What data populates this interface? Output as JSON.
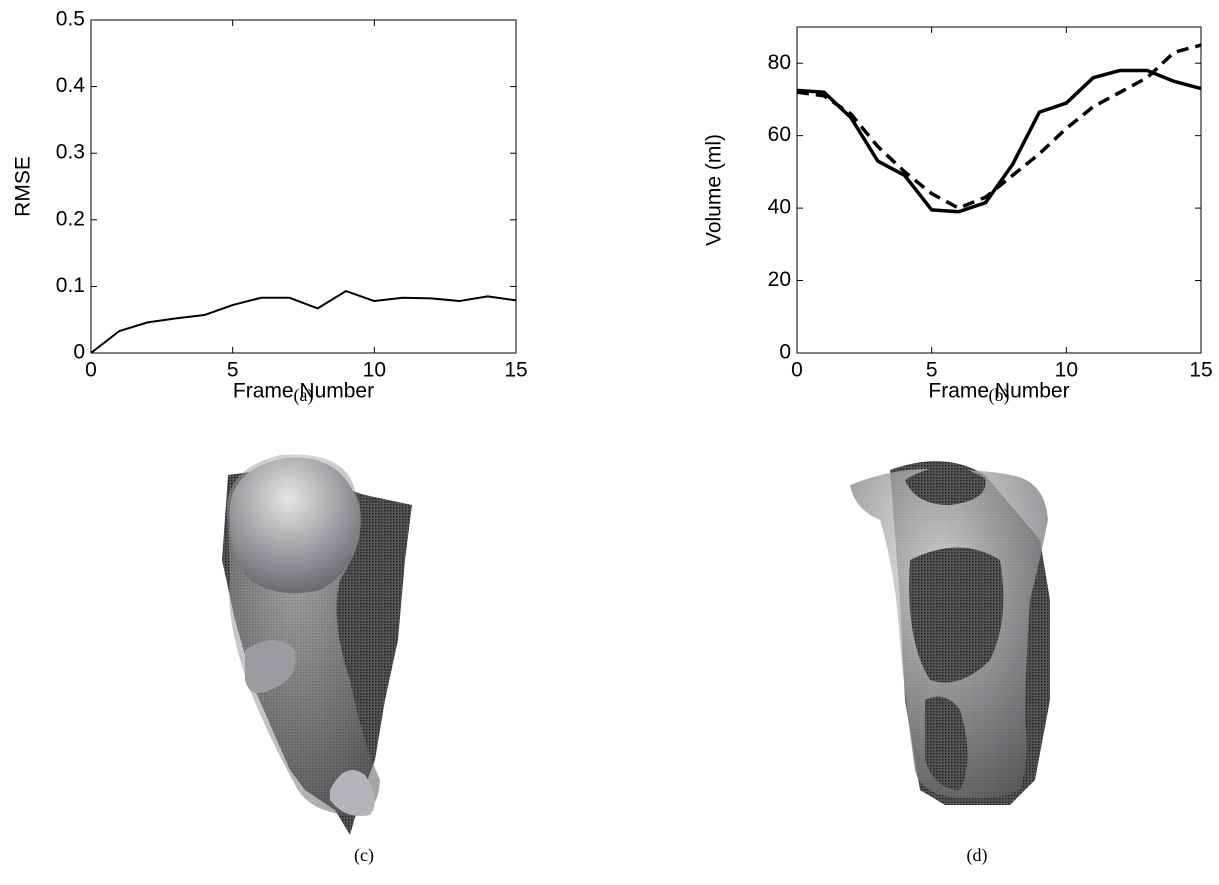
{
  "chart_data": [
    {
      "type": "line",
      "caption": "(a)",
      "xlabel": "Frame Number",
      "ylabel": "RMSE",
      "x": [
        0,
        1,
        2,
        3,
        4,
        5,
        6,
        7,
        8,
        9,
        10,
        11,
        12,
        13,
        14,
        15
      ],
      "series": [
        {
          "color": "#000000",
          "line_style": "solid",
          "values": [
            0.0,
            0.033,
            0.046,
            0.052,
            0.057,
            0.072,
            0.083,
            0.083,
            0.067,
            0.093,
            0.078,
            0.083,
            0.082,
            0.078,
            0.085,
            0.079
          ]
        }
      ],
      "xlim": [
        0,
        15
      ],
      "xticks": [
        0,
        5,
        10,
        15
      ],
      "ylim": [
        0,
        0.5
      ],
      "yticks": [
        0,
        0.1,
        0.2,
        0.3,
        0.4,
        0.5
      ],
      "grid": false
    },
    {
      "type": "line",
      "caption": "(b)",
      "xlabel": "Frame Number",
      "ylabel": "Volume (ml)",
      "x": [
        0,
        1,
        2,
        3,
        4,
        5,
        6,
        7,
        8,
        9,
        10,
        11,
        12,
        13,
        14,
        15
      ],
      "series": [
        {
          "color": "#000000",
          "line_style": "solid",
          "values": [
            72.5,
            72,
            65,
            53,
            49,
            39.5,
            39,
            41.5,
            52,
            66.5,
            69,
            76,
            78,
            78,
            75,
            73
          ]
        },
        {
          "color": "#000000",
          "line_style": "dashed",
          "values": [
            72,
            71,
            66,
            57,
            50,
            44,
            40,
            43,
            49,
            55,
            62,
            68,
            72,
            76,
            83,
            85
          ]
        }
      ],
      "xlim": [
        0,
        15
      ],
      "xticks": [
        0,
        5,
        10,
        15
      ],
      "ylim": [
        0,
        90
      ],
      "yticks": [
        0,
        20,
        40,
        60,
        80
      ],
      "grid": false
    }
  ],
  "figures": [
    {
      "caption": "(c)"
    },
    {
      "caption": "(d)"
    }
  ]
}
